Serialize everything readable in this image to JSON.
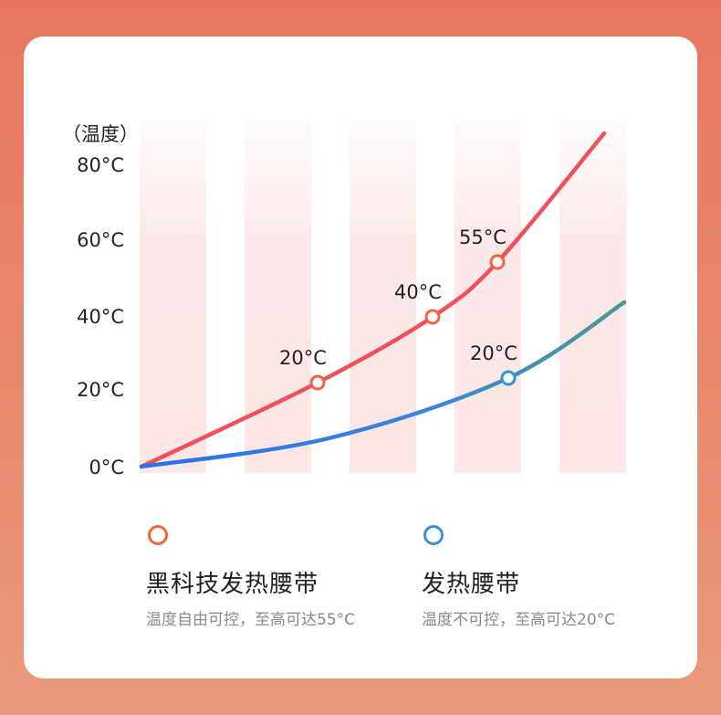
{
  "chart_data": {
    "type": "line",
    "ylabel": "（温度）",
    "ylim": [
      0,
      80
    ],
    "y_ticks": [
      "80°C",
      "60°C",
      "40°C",
      "20°C",
      "0°C"
    ],
    "y_tick_values": [
      80,
      60,
      40,
      20,
      0
    ],
    "grid": "vertical bands",
    "series": [
      {
        "name": "黑科技发热腰带",
        "description": "温度自由可控，至高可达55°C",
        "color": "#F0505A",
        "marker_color": "#F0643C",
        "points": [
          {
            "x": 0,
            "y": 0
          },
          {
            "x": 1,
            "y": 22,
            "label": "20°C"
          },
          {
            "x": 2,
            "y": 39,
            "label": "40°C"
          },
          {
            "x": 3,
            "y": 53,
            "label": "55°C"
          },
          {
            "x": 4.3,
            "y": 86
          }
        ]
      },
      {
        "name": "发热腰带",
        "description": "温度不可控，至高可达20°C",
        "color": "#2F6FE8",
        "color_end": "#4A9A8A",
        "marker_color": "#3A8FD8",
        "points": [
          {
            "x": 0,
            "y": 0
          },
          {
            "x": 1.6,
            "y": 11
          },
          {
            "x": 3,
            "y": 23,
            "label": "20°C"
          },
          {
            "x": 4.2,
            "y": 43
          }
        ]
      }
    ]
  },
  "legend": {
    "item1": {
      "title": "黑科技发热腰带",
      "desc": "温度自由可控，至高可达55°C"
    },
    "item2": {
      "title": "发热腰带",
      "desc": "温度不可控，至高可达20°C"
    }
  }
}
